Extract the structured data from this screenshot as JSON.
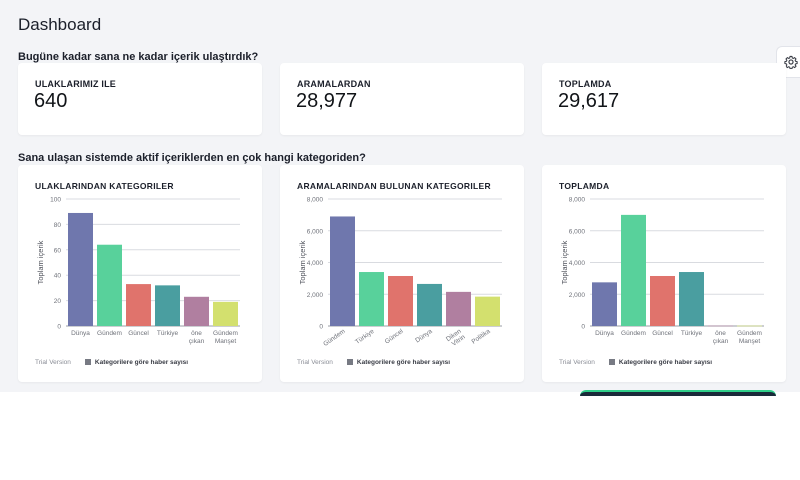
{
  "header": {
    "title": "Dashboard",
    "settings_icon": "gear-icon"
  },
  "sections": {
    "reach": "Bugüne kadar sana ne kadar içerik ulaştırdık?",
    "categories": "Sana ulaşan sistemde aktif içeriklerden en çok hangi kategoriden?"
  },
  "stats": [
    {
      "label": "ULAKLARIMIZ ILE",
      "value": "640"
    },
    {
      "label": "ARAMALARDAN",
      "value": "28,977"
    },
    {
      "label": "TOPLAMDA",
      "value": "29,617"
    }
  ],
  "footer": {
    "trial": "Trial Version",
    "legend": "Kategorilere göre haber sayısı"
  },
  "chart_data": [
    {
      "type": "bar",
      "title": "ULAKLARINDAN KATEGORILER",
      "ylabel": "Toplam içerik",
      "ylim": [
        0,
        100
      ],
      "yticks": [
        "0",
        "20",
        "40",
        "60",
        "80",
        "100"
      ],
      "categories": [
        "Dünya",
        "Gündem",
        "Güncel",
        "Türkiye",
        "öne çıkan",
        "Gündem Manşet"
      ],
      "values": [
        89,
        64,
        33,
        32,
        23,
        19
      ],
      "colors": [
        "#6f77ad",
        "#58d19b",
        "#e0736c",
        "#4a9ea0",
        "#b07fa0",
        "#d3e06e"
      ],
      "legend": "Kategorilere göre haber sayısı"
    },
    {
      "type": "bar",
      "title": "ARAMALARINDAN BULUNAN KATEGORILER",
      "ylabel": "Toplam içerik",
      "ylim": [
        0,
        8000
      ],
      "yticks": [
        "0",
        "2,000",
        "4,000",
        "6,000",
        "8,000"
      ],
      "categories": [
        "Gündem",
        "Türkiye",
        "Güncel",
        "Dünya",
        "Diken Vitrin",
        "Politika"
      ],
      "values": [
        6900,
        3400,
        3150,
        2650,
        2150,
        1850
      ],
      "colors": [
        "#6f77ad",
        "#58d19b",
        "#e0736c",
        "#4a9ea0",
        "#b07fa0",
        "#d3e06e"
      ],
      "legend": "Kategorilere göre haber sayısı"
    },
    {
      "type": "bar",
      "title": "TOPLAMDA",
      "ylabel": "Toplam içerik",
      "ylim": [
        0,
        8000
      ],
      "yticks": [
        "0",
        "2,000",
        "4,000",
        "6,000",
        "8,000"
      ],
      "categories": [
        "Dünya",
        "Gündem",
        "Güncel",
        "Türkiye",
        "öne çıkan",
        "Gündem Manşet"
      ],
      "values": [
        2750,
        7000,
        3150,
        3400,
        20,
        20
      ],
      "colors": [
        "#6f77ad",
        "#58d19b",
        "#e0736c",
        "#4a9ea0",
        "#b07fa0",
        "#d3e06e"
      ],
      "legend": "Kategorilere göre haber sayısı"
    }
  ]
}
